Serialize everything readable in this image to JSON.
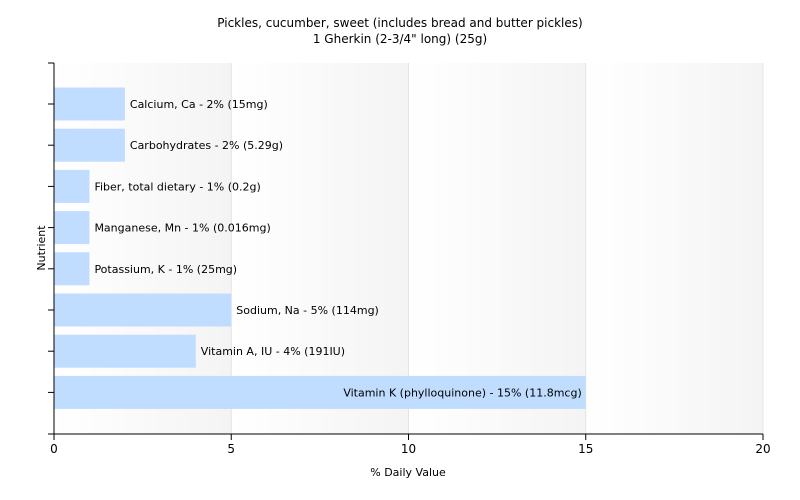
{
  "chart_data": {
    "type": "bar",
    "orientation": "horizontal",
    "title": "Pickles, cucumber, sweet (includes bread and butter pickles)",
    "subtitle": "1 Gherkin (2-3/4\" long) (25g)",
    "xlabel": "% Daily Value",
    "ylabel": "Nutrient",
    "xlim": [
      0,
      20
    ],
    "xticks": [
      "0",
      "5",
      "10",
      "15",
      "20"
    ],
    "grid": true,
    "categories": [
      "Calcium, Ca",
      "Carbohydrates",
      "Fiber, total dietary",
      "Manganese, Mn",
      "Potassium, K",
      "Sodium, Na",
      "Vitamin A, IU",
      "Vitamin K (phylloquinone)"
    ],
    "values": [
      2,
      2,
      1,
      1,
      1,
      5,
      4,
      15
    ],
    "labels": [
      "Calcium, Ca - 2% (15mg)",
      "Carbohydrates - 2% (5.29g)",
      "Fiber, total dietary - 1% (0.2g)",
      "Manganese, Mn - 1% (0.016mg)",
      "Potassium, K - 1% (25mg)",
      "Sodium, Na - 5% (114mg)",
      "Vitamin A, IU - 4% (191IU)",
      "Vitamin K (phylloquinone) - 15% (11.8mcg)"
    ],
    "bar_color": "#c0dcff",
    "grid_color": "#e4e4e4"
  }
}
